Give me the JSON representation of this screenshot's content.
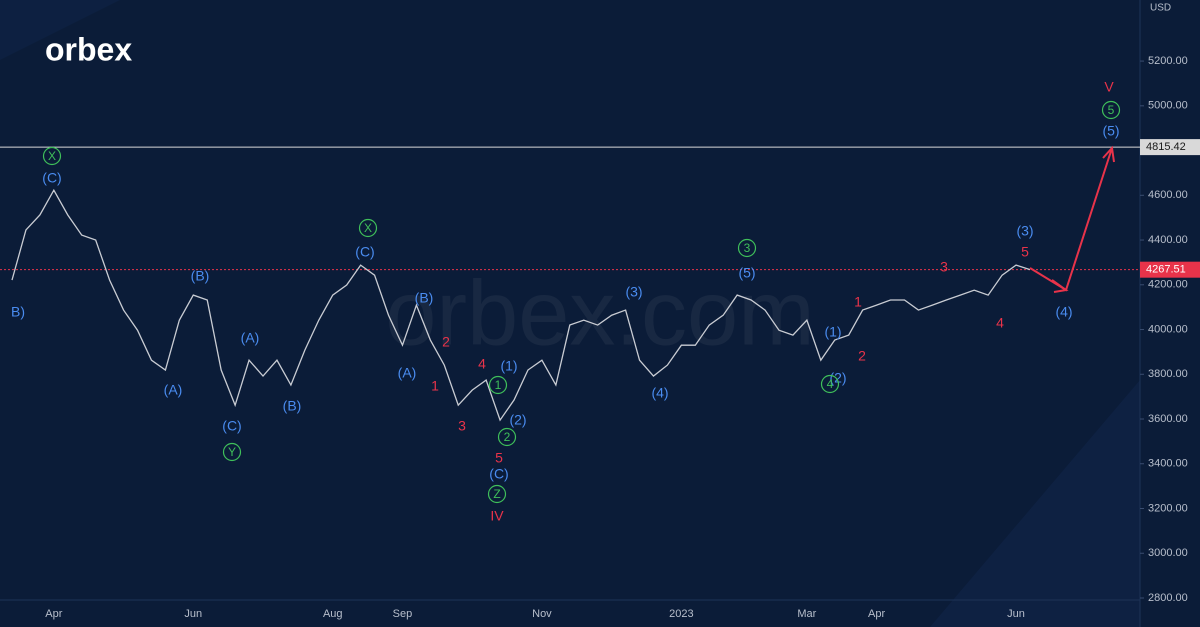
{
  "logo": "orbex",
  "watermark": "orbex.com",
  "chart_data": {
    "type": "line",
    "currency": "USD",
    "categories": [
      null,
      null,
      null,
      "Apr",
      null,
      null,
      null,
      null,
      null,
      null,
      null,
      null,
      null,
      "Jun",
      null,
      null,
      null,
      null,
      null,
      null,
      null,
      null,
      null,
      "Aug",
      null,
      null,
      null,
      null,
      "Sep",
      null,
      null,
      null,
      null,
      null,
      null,
      null,
      null,
      null,
      "Nov",
      null,
      null,
      null,
      null,
      null,
      null,
      null,
      null,
      null,
      "2023",
      null,
      null,
      null,
      null,
      null,
      null,
      null,
      null,
      "Mar",
      null,
      null,
      null,
      null,
      "Apr",
      null,
      null,
      null,
      null,
      null,
      null,
      null,
      null,
      null,
      "Jun",
      null
    ],
    "series": [
      {
        "color": "#c9ccd3",
        "values": [
          4221,
          4445,
          4512,
          4623,
          4512,
          4422,
          4400,
          4221,
          4087,
          3997,
          3863,
          3819,
          4042,
          4154,
          4132,
          3819,
          3662,
          3863,
          3792,
          3863,
          3752,
          3908,
          4042,
          4154,
          4199,
          4288,
          4243,
          4064,
          3930,
          4109,
          3953,
          3841,
          3662,
          3729,
          3774,
          3595,
          3685,
          3819,
          3863,
          3752,
          4020,
          4042,
          4020,
          4064,
          4087,
          3863,
          3792,
          3841,
          3930,
          3930,
          4020,
          4064,
          4154,
          4132,
          4087,
          3997,
          3975,
          4042,
          3863,
          3953,
          3975,
          4087,
          4109,
          4132,
          4132,
          4087,
          4109,
          4132,
          4154,
          4176,
          4154,
          4243,
          4288,
          4268
        ]
      }
    ],
    "ylim": [
      2791,
      5473
    ],
    "yticks": [
      {
        "value": 2800,
        "label": "2800.00"
      },
      {
        "value": 3000,
        "label": "3000.00"
      },
      {
        "value": 3200,
        "label": "3200.00"
      },
      {
        "value": 3400,
        "label": "3400.00"
      },
      {
        "value": 3600,
        "label": "3600.00"
      },
      {
        "value": 3800,
        "label": "3800.00"
      },
      {
        "value": 4000,
        "label": "4000.00"
      },
      {
        "value": 4200,
        "label": "4200.00"
      },
      {
        "value": 4400,
        "label": "4400.00"
      },
      {
        "value": 4600,
        "label": "4600.00"
      },
      {
        "value": 4800,
        "label": "4800.00"
      },
      {
        "value": 5000,
        "label": "5000.00"
      },
      {
        "value": 5200,
        "label": "5200.00"
      }
    ],
    "levels": [
      {
        "value": 4815.42,
        "color": "#d9d9d9",
        "style": "solid"
      },
      {
        "value": 4267.51,
        "color": "#e8334a",
        "style": "dashed"
      }
    ],
    "annotations": [
      {
        "text": "B)",
        "color": "#4a8cf0"
      },
      {
        "text": "(C)",
        "color": "#4a8cf0"
      },
      {
        "text": "X",
        "color": "#3fbf5a",
        "circled": true
      },
      {
        "text": "(B)",
        "color": "#4a8cf0"
      },
      {
        "text": "(A)",
        "color": "#4a8cf0"
      },
      {
        "text": "(A)",
        "color": "#4a8cf0"
      },
      {
        "text": "(C)",
        "color": "#4a8cf0"
      },
      {
        "text": "Y",
        "color": "#3fbf5a",
        "circled": true
      },
      {
        "text": "(B)",
        "color": "#4a8cf0"
      },
      {
        "text": "(C)",
        "color": "#4a8cf0"
      },
      {
        "text": "X",
        "color": "#3fbf5a",
        "circled": true
      },
      {
        "text": "(B)",
        "color": "#4a8cf0"
      },
      {
        "text": "(A)",
        "color": "#4a8cf0"
      },
      {
        "text": "2",
        "color": "#e8334a"
      },
      {
        "text": "1",
        "color": "#e8334a"
      },
      {
        "text": "3",
        "color": "#e8334a"
      },
      {
        "text": "4",
        "color": "#e8334a"
      },
      {
        "text": "(1)",
        "color": "#4a8cf0"
      },
      {
        "text": "1",
        "color": "#3fbf5a",
        "circled": true
      },
      {
        "text": "(2)",
        "color": "#4a8cf0"
      },
      {
        "text": "2",
        "color": "#3fbf5a",
        "circled": true
      },
      {
        "text": "5",
        "color": "#e8334a"
      },
      {
        "text": "(C)",
        "color": "#4a8cf0"
      },
      {
        "text": "Z",
        "color": "#3fbf5a",
        "circled": true
      },
      {
        "text": "IV",
        "color": "#e8334a"
      },
      {
        "text": "(3)",
        "color": "#4a8cf0"
      },
      {
        "text": "(4)",
        "color": "#4a8cf0"
      },
      {
        "text": "3",
        "color": "#3fbf5a",
        "circled": true
      },
      {
        "text": "(5)",
        "color": "#4a8cf0"
      },
      {
        "text": "1",
        "color": "#e8334a"
      },
      {
        "text": "(1)",
        "color": "#4a8cf0"
      },
      {
        "text": "2",
        "color": "#e8334a"
      },
      {
        "text": "(2)",
        "color": "#4a8cf0"
      },
      {
        "text": "4",
        "color": "#3fbf5a",
        "circled": true
      },
      {
        "text": "3",
        "color": "#e8334a"
      },
      {
        "text": "4",
        "color": "#e8334a"
      },
      {
        "text": "(3)",
        "color": "#4a8cf0"
      },
      {
        "text": "5",
        "color": "#e8334a"
      },
      {
        "text": "(4)",
        "color": "#4a8cf0"
      },
      {
        "text": "V",
        "color": "#e8334a"
      },
      {
        "text": "5",
        "color": "#3fbf5a",
        "circled": true
      },
      {
        "text": "(5)",
        "color": "#4a8cf0"
      }
    ]
  }
}
